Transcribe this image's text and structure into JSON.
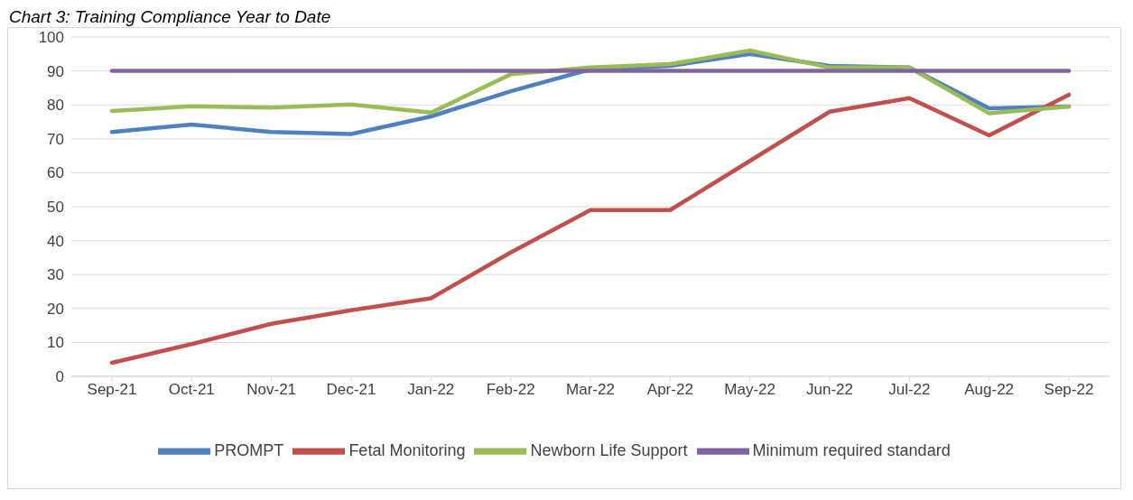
{
  "chart_data": {
    "type": "line",
    "title": "Chart 3: Training Compliance Year to Date",
    "categories": [
      "Sep-21",
      "Oct-21",
      "Nov-21",
      "Dec-21",
      "Jan-22",
      "Feb-22",
      "Mar-22",
      "Apr-22",
      "May-22",
      "Jun-22",
      "Jul-22",
      "Aug-22",
      "Sep-22"
    ],
    "series": [
      {
        "name": "PROMPT",
        "color": "#4f81bd",
        "values": [
          72,
          74.2,
          72,
          71.4,
          76.6,
          84,
          90.5,
          91.5,
          95,
          91.5,
          91,
          79,
          79.5
        ]
      },
      {
        "name": "Fetal Monitoring",
        "color": "#c0504d",
        "values": [
          4,
          9.5,
          15.5,
          19.5,
          23,
          36.5,
          49,
          49,
          63.5,
          78,
          82,
          71,
          83
        ]
      },
      {
        "name": "Newborn Life Support",
        "color": "#9bbb59",
        "values": [
          78.2,
          79.6,
          79.2,
          80.1,
          77.7,
          89,
          91,
          92,
          96,
          91,
          91,
          77.5,
          79.5
        ]
      },
      {
        "name": "Minimum required standard",
        "color": "#8064a2",
        "values": [
          90,
          90,
          90,
          90,
          90,
          90,
          90,
          90,
          90,
          90,
          90,
          90,
          90
        ]
      }
    ],
    "ylim": [
      0,
      100
    ],
    "yticks": [
      0,
      10,
      20,
      30,
      40,
      50,
      60,
      70,
      80,
      90,
      100
    ],
    "grid": "y",
    "legend": "bottom",
    "marker": "none",
    "line_style": "solid"
  }
}
